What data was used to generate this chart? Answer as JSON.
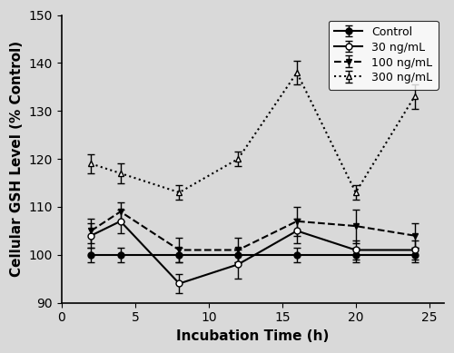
{
  "x": [
    2,
    4,
    8,
    12,
    16,
    20,
    24
  ],
  "control": {
    "y": [
      100,
      100,
      100,
      100,
      100,
      100,
      100
    ],
    "yerr": [
      1.5,
      1.5,
      1.5,
      1.5,
      1.5,
      1.5,
      1.5
    ],
    "label": "Control",
    "linestyle": "-",
    "marker": "o",
    "markerfacecolor": "#000000",
    "markeredgecolor": "#000000",
    "color": "#000000"
  },
  "ng30": {
    "y": [
      104,
      107,
      94,
      98,
      105,
      101,
      101
    ],
    "yerr": [
      2.5,
      2.5,
      2.0,
      3.0,
      2.5,
      2.0,
      2.0
    ],
    "label": "30 ng/mL",
    "linestyle": "-",
    "marker": "o",
    "markerfacecolor": "#ffffff",
    "markeredgecolor": "#000000",
    "color": "#000000"
  },
  "ng100": {
    "y": [
      105,
      109,
      101,
      101,
      107,
      106,
      104
    ],
    "yerr": [
      2.5,
      2.0,
      2.5,
      2.5,
      3.0,
      3.5,
      2.5
    ],
    "label": "100 ng/mL",
    "linestyle": "--",
    "marker": "v",
    "markerfacecolor": "#000000",
    "markeredgecolor": "#000000",
    "color": "#000000"
  },
  "ng300": {
    "y": [
      119,
      117,
      113,
      120,
      138,
      113,
      133
    ],
    "yerr": [
      2.0,
      2.0,
      1.5,
      1.5,
      2.5,
      1.5,
      2.5
    ],
    "label": "300 ng/mL",
    "linestyle": ":",
    "marker": "^",
    "markerfacecolor": "#ffffff",
    "markeredgecolor": "#000000",
    "color": "#000000"
  },
  "xlabel": "Incubation Time (h)",
  "ylabel": "Cellular GSH Level (% Control)",
  "xlim": [
    0,
    26
  ],
  "ylim": [
    90,
    150
  ],
  "yticks": [
    90,
    100,
    110,
    120,
    130,
    140,
    150
  ],
  "xticks": [
    0,
    5,
    10,
    15,
    20,
    25
  ],
  "bg_color": "#d9d9d9",
  "fig_color": "#d9d9d9"
}
